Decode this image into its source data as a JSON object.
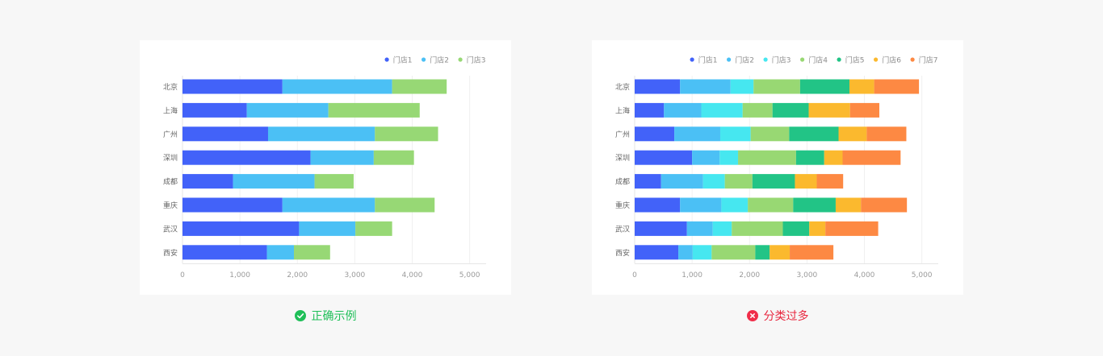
{
  "chart_data": [
    {
      "type": "bar",
      "orientation": "horizontal",
      "stacked": true,
      "categories": [
        "北京",
        "上海",
        "广州",
        "深圳",
        "成都",
        "重庆",
        "武汉",
        "西安"
      ],
      "x_ticks": [
        "0",
        "1,000",
        "2,000",
        "3,000",
        "4,000",
        "5,000"
      ],
      "xlim": [
        0,
        5300
      ],
      "legend_position": "top-right",
      "series": [
        {
          "name": "门店1",
          "color": "#4262f9",
          "values": [
            1740,
            1120,
            1490,
            2230,
            880,
            1740,
            2030,
            1470
          ]
        },
        {
          "name": "门店2",
          "color": "#4bc0f5",
          "values": [
            1910,
            1420,
            1860,
            1100,
            1420,
            1610,
            980,
            470
          ]
        },
        {
          "name": "门店3",
          "color": "#97d875",
          "values": [
            950,
            1590,
            1100,
            700,
            680,
            1040,
            640,
            630
          ]
        }
      ]
    },
    {
      "type": "bar",
      "orientation": "horizontal",
      "stacked": true,
      "categories": [
        "北京",
        "上海",
        "广州",
        "深圳",
        "成都",
        "重庆",
        "武汉",
        "西安"
      ],
      "x_ticks": [
        "0",
        "1,000",
        "2,000",
        "3,000",
        "4,000",
        "5,000"
      ],
      "xlim": [
        0,
        5300
      ],
      "legend_position": "top-right",
      "series": [
        {
          "name": "门店1",
          "color": "#4262f9",
          "values": [
            790,
            510,
            690,
            1000,
            460,
            790,
            910,
            760
          ]
        },
        {
          "name": "门店2",
          "color": "#4bc0f5",
          "values": [
            880,
            650,
            800,
            480,
            730,
            720,
            450,
            250
          ]
        },
        {
          "name": "门店3",
          "color": "#46e7f0",
          "values": [
            400,
            720,
            530,
            320,
            380,
            460,
            330,
            330
          ]
        },
        {
          "name": "门店4",
          "color": "#98d873",
          "values": [
            810,
            520,
            670,
            1010,
            480,
            790,
            890,
            760
          ]
        },
        {
          "name": "门店5",
          "color": "#22c486",
          "values": [
            860,
            630,
            860,
            490,
            740,
            740,
            460,
            250
          ]
        },
        {
          "name": "门店6",
          "color": "#fbb92e",
          "values": [
            430,
            720,
            490,
            320,
            380,
            440,
            280,
            350
          ]
        },
        {
          "name": "门店7",
          "color": "#fd8943",
          "values": [
            780,
            510,
            690,
            1010,
            460,
            800,
            920,
            760
          ]
        }
      ]
    }
  ],
  "captions": {
    "correct": "正确示例",
    "wrong": "分类过多"
  },
  "icons": {
    "correct": "check-circle-icon",
    "wrong": "close-circle-icon"
  }
}
